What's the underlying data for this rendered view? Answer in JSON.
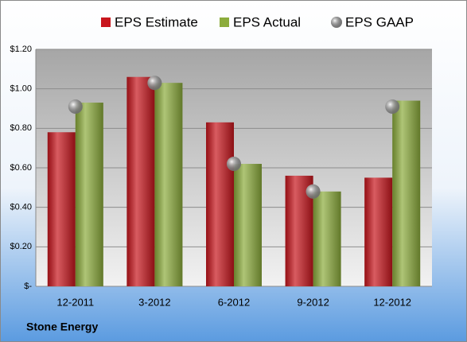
{
  "chart_data": {
    "type": "bar",
    "footer": "Stone Energy",
    "categories": [
      "12-2011",
      "3-2012",
      "6-2012",
      "9-2012",
      "12-2012"
    ],
    "series": [
      {
        "name": "EPS Estimate",
        "color": "#c8161d",
        "values": [
          0.78,
          1.06,
          0.83,
          0.56,
          0.55
        ]
      },
      {
        "name": "EPS Actual",
        "color": "#8cac3c",
        "values": [
          0.93,
          1.03,
          0.62,
          0.48,
          0.94
        ]
      },
      {
        "name": "EPS GAAP",
        "color": "#b4b4b4",
        "type": "scatter",
        "values": [
          0.91,
          1.03,
          0.62,
          0.48,
          0.91
        ]
      }
    ],
    "ylim": [
      0,
      1.2
    ],
    "yticks": [
      {
        "value": 0,
        "label": "$-"
      },
      {
        "value": 0.2,
        "label": "$0.20"
      },
      {
        "value": 0.4,
        "label": "$0.40"
      },
      {
        "value": 0.6,
        "label": "$0.60"
      },
      {
        "value": 0.8,
        "label": "$0.80"
      },
      {
        "value": 1.0,
        "label": "$1.00"
      },
      {
        "value": 1.2,
        "label": "$1.20"
      }
    ],
    "grid": true
  }
}
